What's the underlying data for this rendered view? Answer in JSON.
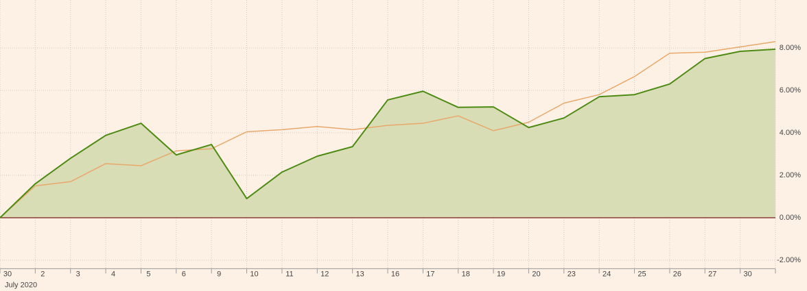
{
  "chart_data": {
    "type": "line",
    "categories": [
      "30",
      "2",
      "3",
      "4",
      "5",
      "6",
      "9",
      "10",
      "11",
      "12",
      "13",
      "16",
      "17",
      "18",
      "19",
      "20",
      "23",
      "24",
      "25",
      "26",
      "27",
      "30",
      null
    ],
    "x_sublabel": "July 2020",
    "series": [
      {
        "color": "#4d8a12",
        "fill": "#d8ddb6",
        "values": [
          0,
          1.6,
          2.8,
          3.88,
          4.45,
          2.96,
          3.45,
          0.9,
          2.15,
          2.9,
          3.35,
          5.55,
          5.96,
          5.2,
          5.22,
          4.25,
          4.7,
          5.7,
          5.8,
          6.3,
          7.5,
          7.84,
          7.94
        ]
      },
      {
        "color": "#e8a86a",
        "values": [
          0,
          1.5,
          1.7,
          2.55,
          2.45,
          3.15,
          3.25,
          4.05,
          4.15,
          4.3,
          4.15,
          4.35,
          4.45,
          4.8,
          4.1,
          4.5,
          5.4,
          5.8,
          6.65,
          7.75,
          7.8,
          8.05,
          8.3
        ]
      }
    ],
    "ylim": [
      -2.4,
      10.2
    ],
    "yticks": [
      {
        "value": -2,
        "label": "-2.00%"
      },
      {
        "value": 0,
        "label": "0.00%"
      },
      {
        "value": 2,
        "label": "2.00%"
      },
      {
        "value": 4,
        "label": "4.00%"
      },
      {
        "value": 6,
        "label": "6.00%"
      },
      {
        "value": 8,
        "label": "8.00%"
      }
    ],
    "zero_line_color": "#7a1a1a",
    "grid": true
  }
}
